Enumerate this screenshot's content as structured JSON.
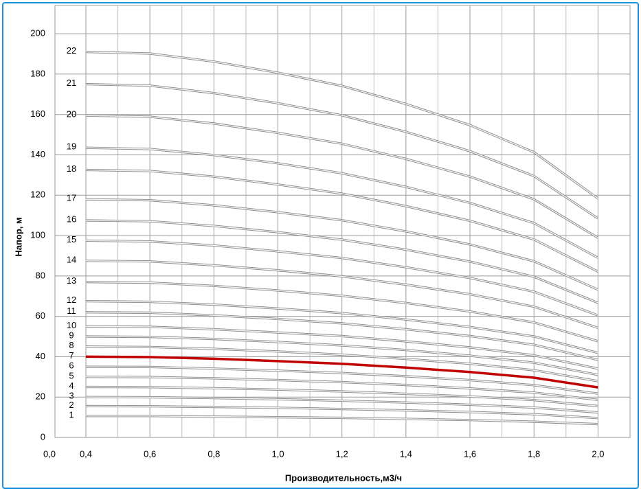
{
  "chart_data": {
    "type": "line",
    "x_label": "Производительность,м3/ч",
    "y_label": "Напор, м",
    "x": [
      0.4,
      0.6,
      0.8,
      1.0,
      1.2,
      1.4,
      1.6,
      1.8,
      2.0
    ],
    "xlim": [
      0,
      2.1
    ],
    "ylim": [
      0,
      214
    ],
    "xticks": [
      {
        "value": 0,
        "label": "0,0"
      },
      {
        "value": 0.4,
        "label": "0,4"
      },
      {
        "value": 0.6,
        "label": "0,6"
      },
      {
        "value": 0.8,
        "label": "0,8"
      },
      {
        "value": 1.0,
        "label": "1,0"
      },
      {
        "value": 1.2,
        "label": "1,2"
      },
      {
        "value": 1.4,
        "label": "1,4"
      },
      {
        "value": 1.6,
        "label": "1,6"
      },
      {
        "value": 1.8,
        "label": "1,8"
      },
      {
        "value": 2.0,
        "label": "2,0"
      }
    ],
    "x_minor_gridlines": [
      0.5,
      0.7,
      0.9,
      1.1,
      1.3,
      1.5,
      1.7,
      1.9
    ],
    "yticks": [
      0,
      20,
      40,
      60,
      80,
      100,
      120,
      140,
      160,
      180,
      200
    ],
    "grid": true,
    "series": [
      {
        "name": "1",
        "color": "#bfbfbf",
        "values": [
          10.6,
          10.6,
          10.3,
          10.0,
          9.7,
          9.2,
          8.6,
          7.8,
          6.6
        ]
      },
      {
        "name": "2",
        "color": "#bfbfbf",
        "values": [
          15.5,
          15.4,
          15.1,
          14.7,
          14.1,
          13.4,
          12.6,
          11.5,
          9.6
        ]
      },
      {
        "name": "3",
        "color": "#bfbfbf",
        "values": [
          20,
          19.9,
          19.5,
          18.9,
          18.2,
          17.3,
          16.2,
          14.8,
          12.4
        ]
      },
      {
        "name": "4",
        "color": "#bfbfbf",
        "values": [
          25,
          24.9,
          24.4,
          23.7,
          22.8,
          21.6,
          20.3,
          18.5,
          15.5
        ]
      },
      {
        "name": "5",
        "color": "#bfbfbf",
        "values": [
          30,
          29.9,
          29.3,
          28.4,
          27.4,
          26,
          24.3,
          22.2,
          18.6
        ]
      },
      {
        "name": "6",
        "color": "#bfbfbf",
        "values": [
          35,
          34.9,
          34.1,
          33.1,
          31.9,
          30.3,
          28.4,
          25.9,
          21.7
        ]
      },
      {
        "name": "7",
        "color": "#c00000",
        "values": [
          40,
          39.8,
          39,
          37.8,
          36.5,
          34.6,
          32.4,
          29.6,
          24.8
        ]
      },
      {
        "name": "8",
        "color": "#bfbfbf",
        "values": [
          45,
          44.8,
          43.9,
          42.6,
          41,
          38.9,
          36.5,
          33.3,
          27.9
        ]
      },
      {
        "name": "9",
        "color": "#bfbfbf",
        "values": [
          50,
          49.8,
          48.8,
          47.3,
          45.6,
          43.3,
          40.5,
          37,
          31
        ]
      },
      {
        "name": "10",
        "color": "#bfbfbf",
        "values": [
          55,
          54.8,
          53.6,
          52,
          50.2,
          47.6,
          44.6,
          40.7,
          34.1
        ]
      },
      {
        "name": "11",
        "color": "#bfbfbf",
        "values": [
          62,
          61.8,
          60.5,
          58.7,
          56.5,
          53.6,
          50.2,
          45.9,
          38.4
        ]
      },
      {
        "name": "12",
        "color": "#e0e0e0",
        "values": [
          67.5,
          67.2,
          65.8,
          63.9,
          61.6,
          58.4,
          54.7,
          50,
          41.9
        ]
      },
      {
        "name": "13",
        "color": "#bfbfbf",
        "values": [
          77,
          76.7,
          75.1,
          72.8,
          70.2,
          66.6,
          62.4,
          57,
          47.7
        ]
      },
      {
        "name": "14",
        "color": "#bfbfbf",
        "values": [
          87.5,
          87.2,
          85.3,
          82.8,
          79.8,
          75.7,
          70.9,
          64.8,
          54.3
        ]
      },
      {
        "name": "15",
        "color": "#bfbfbf",
        "values": [
          97.5,
          97.1,
          95.1,
          92.2,
          88.9,
          84.3,
          79,
          72.2,
          60.5
        ]
      },
      {
        "name": "16",
        "color": "#bfbfbf",
        "values": [
          107.5,
          107.1,
          104.8,
          101.7,
          98,
          93,
          87.1,
          79.6,
          66.7
        ]
      },
      {
        "name": "17",
        "color": "#bfbfbf",
        "values": [
          118,
          117.5,
          115,
          111.6,
          107.6,
          102.1,
          95.6,
          87.3,
          73.2
        ]
      },
      {
        "name": "18",
        "color": "#bfbfbf",
        "values": [
          132.5,
          132,
          129.2,
          125.3,
          120.8,
          114.6,
          107.3,
          98.1,
          82.2
        ]
      },
      {
        "name": "19",
        "color": "#bfbfbf",
        "values": [
          143.5,
          142.9,
          139.9,
          135.8,
          130.9,
          124.1,
          116.2,
          106.2,
          89
        ]
      },
      {
        "name": "20",
        "color": "#bfbfbf",
        "values": [
          159.5,
          158.9,
          155.5,
          150.9,
          145.5,
          138,
          129.2,
          118,
          98.9
        ]
      },
      {
        "name": "21",
        "color": "#bfbfbf",
        "values": [
          175,
          174.3,
          170.6,
          165.6,
          159.6,
          151.4,
          141.8,
          129.5,
          108.5
        ]
      },
      {
        "name": "22",
        "color": "#bfbfbf",
        "values": [
          191,
          190.2,
          186.2,
          180.7,
          174.2,
          165.2,
          154.7,
          141.3,
          118.4
        ]
      }
    ]
  }
}
